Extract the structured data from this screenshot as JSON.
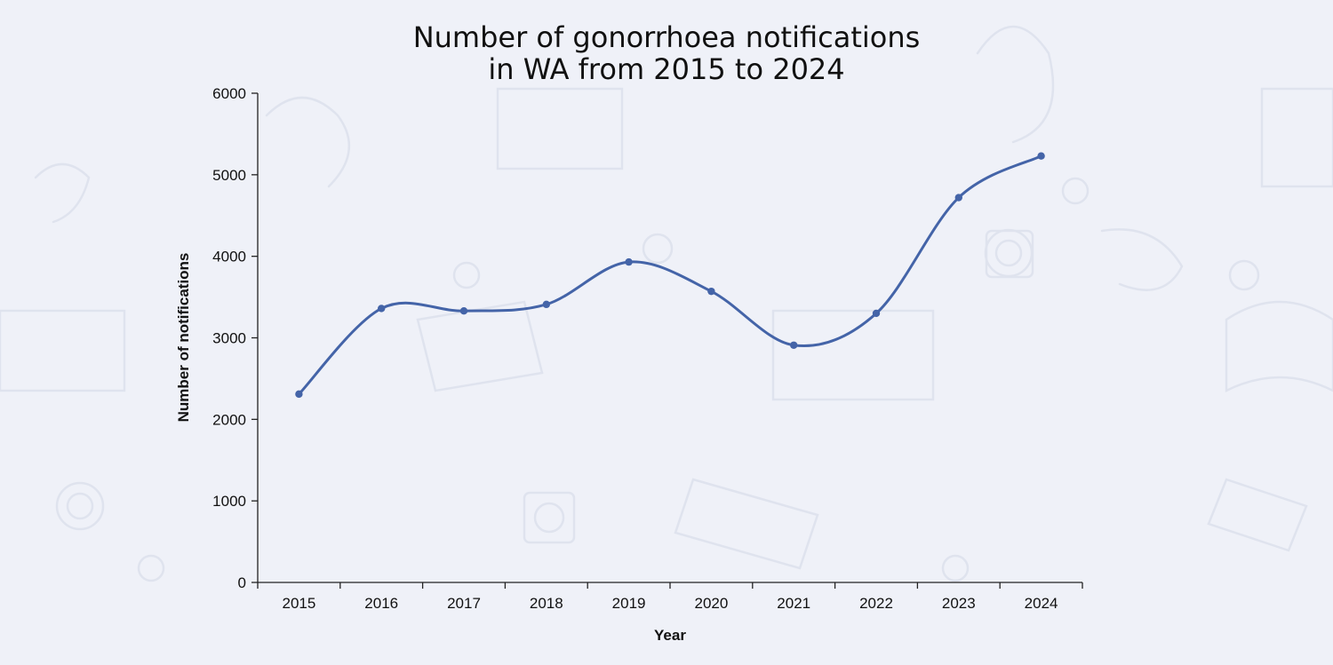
{
  "chart_data": {
    "type": "line",
    "title_lines": [
      "Number of gonorrhoea notifications",
      "in WA from 2015 to 2024"
    ],
    "xlabel": "Year",
    "ylabel": "Number of notifications",
    "categories": [
      "2015",
      "2016",
      "2017",
      "2018",
      "2019",
      "2020",
      "2021",
      "2022",
      "2023",
      "2024"
    ],
    "series": [
      {
        "values": [
          2310,
          3360,
          3330,
          3410,
          3930,
          3570,
          2910,
          3300,
          4720,
          5230
        ]
      }
    ],
    "ylim": [
      0,
      6000
    ],
    "yticks": [
      0,
      1000,
      2000,
      3000,
      4000,
      5000,
      6000
    ],
    "line_color": "#4464a8",
    "smooth": true,
    "grid": false,
    "legend": "none"
  }
}
